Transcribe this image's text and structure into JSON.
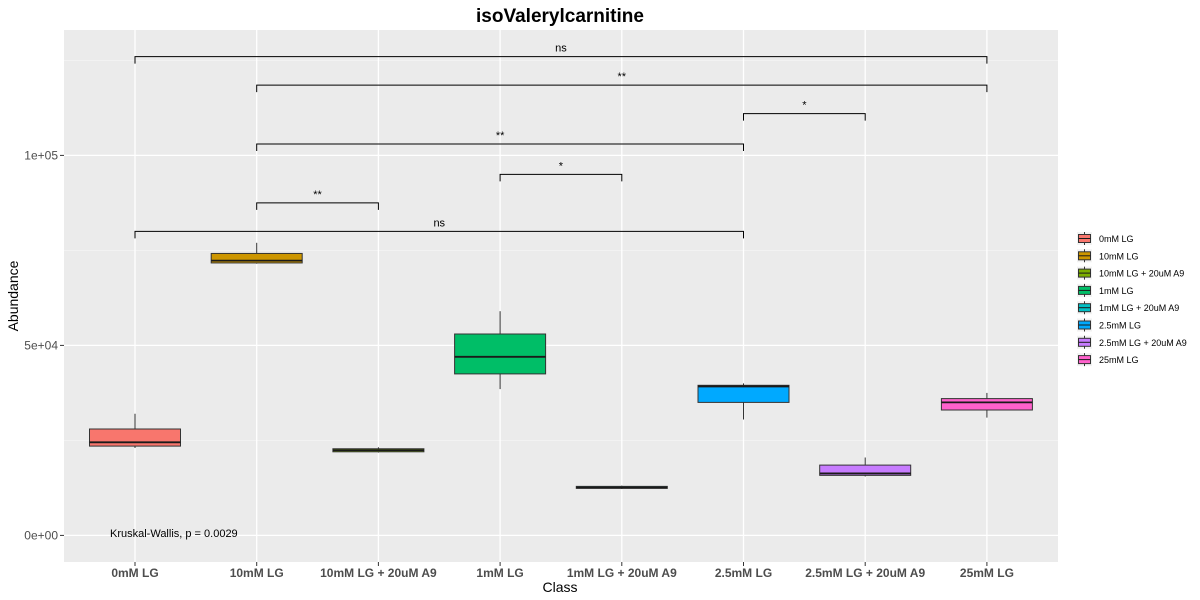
{
  "chart_data": {
    "type": "box",
    "title": "isoValerylcarnitine",
    "xlabel": "Class",
    "ylabel": "Abundance",
    "ylim": [
      -7000,
      133000
    ],
    "yticks": [
      {
        "value": 0,
        "label": "0e+00"
      },
      {
        "value": 50000,
        "label": "5e+04"
      },
      {
        "value": 100000,
        "label": "1e+05"
      }
    ],
    "grid": true,
    "legend_position": "right",
    "categories": [
      "0mM LG",
      "10mM LG",
      "10mM LG + 20uM A9",
      "1mM LG",
      "1mM LG + 20uM A9",
      "2.5mM LG",
      "2.5mM LG + 20uM A9",
      "25mM LG"
    ],
    "colors": [
      "#F8766D",
      "#CD9600",
      "#7CAE00",
      "#00BE67",
      "#00BFC4",
      "#00A9FF",
      "#C77CFF",
      "#FF61CC"
    ],
    "boxes": [
      {
        "category": "0mM LG",
        "min": 23000,
        "q1": 23500,
        "median": 24500,
        "q3": 28000,
        "max": 32000
      },
      {
        "category": "10mM LG",
        "min": 71500,
        "q1": 71700,
        "median": 72300,
        "q3": 74200,
        "max": 77000
      },
      {
        "category": "10mM LG + 20uM A9",
        "min": 21800,
        "q1": 22000,
        "median": 22400,
        "q3": 22800,
        "max": 23200
      },
      {
        "category": "1mM LG",
        "min": 38500,
        "q1": 42500,
        "median": 47000,
        "q3": 53000,
        "max": 59000
      },
      {
        "category": "1mM LG + 20uM A9",
        "min": 12200,
        "q1": 12400,
        "median": 12600,
        "q3": 12900,
        "max": 13100
      },
      {
        "category": "2.5mM LG",
        "min": 30500,
        "q1": 35000,
        "median": 39200,
        "q3": 39500,
        "max": 40000
      },
      {
        "category": "2.5mM LG + 20uM A9",
        "min": 15500,
        "q1": 15800,
        "median": 16300,
        "q3": 18500,
        "max": 20500
      },
      {
        "category": "25mM LG",
        "min": 31000,
        "q1": 33000,
        "median": 35000,
        "q3": 36000,
        "max": 37500
      }
    ],
    "comparisons": [
      {
        "from": "0mM LG",
        "to": "25mM LG",
        "y": 126000,
        "label": "ns"
      },
      {
        "from": "10mM LG",
        "to": "25mM LG",
        "y": 118500,
        "label": "**"
      },
      {
        "from": "2.5mM LG",
        "to": "2.5mM LG + 20uM A9",
        "y": 111000,
        "label": "*"
      },
      {
        "from": "10mM LG",
        "to": "2.5mM LG",
        "y": 103000,
        "label": "**"
      },
      {
        "from": "1mM LG",
        "to": "1mM LG + 20uM A9",
        "y": 95000,
        "label": "*"
      },
      {
        "from": "10mM LG",
        "to": "10mM LG + 20uM A9",
        "y": 87500,
        "label": "**"
      },
      {
        "from": "0mM LG",
        "to": "2.5mM LG",
        "y": 80000,
        "label": "ns"
      }
    ],
    "annotation": "Kruskal-Wallis, p = 0.0029",
    "legend": [
      "0mM LG",
      "10mM LG",
      "10mM LG + 20uM A9",
      "1mM LG",
      "1mM LG + 20uM A9",
      "2.5mM LG",
      "2.5mM LG + 20uM A9",
      "25mM LG"
    ]
  }
}
